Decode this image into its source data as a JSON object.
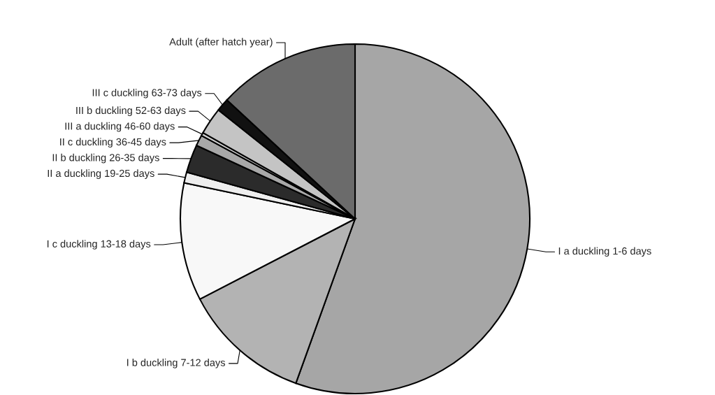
{
  "chart_data": {
    "type": "pie",
    "categories": [
      "I a duckling 1-6 days",
      "I b duckling 7-12 days",
      "I c duckling 13-18 days",
      "II a duckling 19-25 days",
      "II b duckling 26-35 days",
      "II c duckling 36-45 days",
      "III a duckling 46-60 days",
      "III b duckling 52-63 days",
      "III c duckling 63-73 days",
      "Adult (after hatch year)"
    ],
    "values": [
      55.5,
      11.9,
      10.9,
      1.0,
      2.6,
      1.0,
      0.3,
      2.5,
      1.2,
      13.1
    ],
    "colors": [
      "#a6a6a6",
      "#b3b3b3",
      "#f8f8f8",
      "#eeeeee",
      "#2b2b2b",
      "#a8a8a8",
      "#d0d0d0",
      "#c4c4c4",
      "#111111",
      "#6b6b6b"
    ]
  }
}
